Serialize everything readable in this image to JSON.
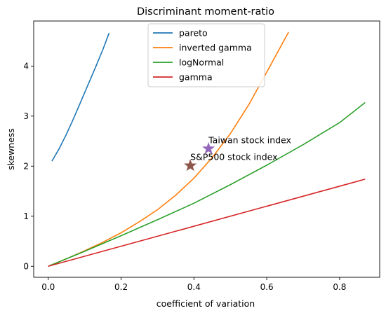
{
  "chart_data": {
    "type": "line",
    "title": "Discriminant moment-ratio",
    "xlabel": "coefficient of variation",
    "ylabel": "skewness",
    "xlim": [
      -0.04,
      0.91
    ],
    "ylim": [
      -0.22,
      4.9
    ],
    "xticks": [
      0.0,
      0.2,
      0.4,
      0.6,
      0.8
    ],
    "xtick_labels": [
      "0.0",
      "0.2",
      "0.4",
      "0.6",
      "0.8"
    ],
    "yticks": [
      0,
      1,
      2,
      3,
      4
    ],
    "ytick_labels": [
      "0",
      "1",
      "2",
      "3",
      "4"
    ],
    "grid": false,
    "legend_position": "top-center",
    "series": [
      {
        "name": "pareto",
        "color": "#1f77b4",
        "x": [
          0.01,
          0.03,
          0.05,
          0.07,
          0.09,
          0.11,
          0.13,
          0.15,
          0.167
        ],
        "y": [
          2.1,
          2.35,
          2.64,
          2.96,
          3.3,
          3.64,
          3.98,
          4.33,
          4.66
        ]
      },
      {
        "name": "inverted gamma",
        "color": "#ff7f0e",
        "x": [
          0.0,
          0.05,
          0.1,
          0.15,
          0.2,
          0.25,
          0.3,
          0.35,
          0.4,
          0.45,
          0.5,
          0.55,
          0.6,
          0.66
        ],
        "y": [
          0.0,
          0.15,
          0.31,
          0.48,
          0.67,
          0.89,
          1.13,
          1.42,
          1.76,
          2.17,
          2.65,
          3.22,
          3.88,
          4.68
        ]
      },
      {
        "name": "logNormal",
        "color": "#2ca02c",
        "x": [
          0.0,
          0.1,
          0.2,
          0.3,
          0.4,
          0.5,
          0.6,
          0.7,
          0.8,
          0.87
        ],
        "y": [
          0.0,
          0.3,
          0.61,
          0.93,
          1.26,
          1.63,
          2.02,
          2.43,
          2.87,
          3.27
        ]
      },
      {
        "name": "gamma",
        "color": "#d62728",
        "x": [
          0.0,
          0.87
        ],
        "y": [
          0.0,
          1.74
        ]
      }
    ],
    "markers": [
      {
        "label": "Taiwan stock index",
        "x": 0.44,
        "y": 2.35,
        "color": "#9467bd"
      },
      {
        "label": "S&P500 stock index",
        "x": 0.39,
        "y": 2.01,
        "color": "#8c564b"
      }
    ]
  }
}
